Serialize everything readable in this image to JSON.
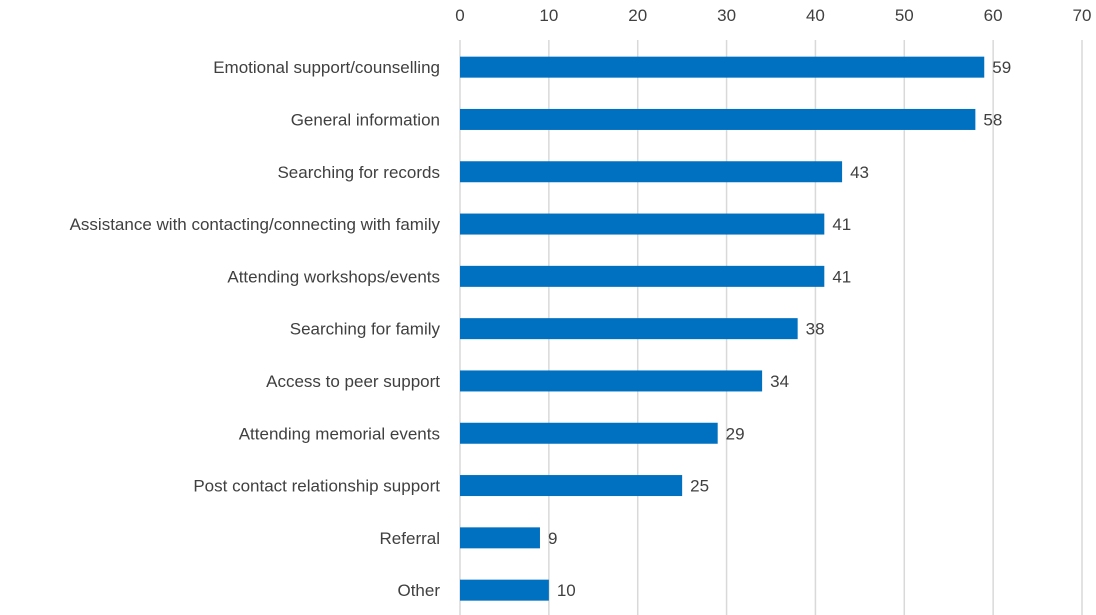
{
  "chart_data": {
    "type": "bar",
    "orientation": "horizontal",
    "categories": [
      "Emotional support/counselling",
      "General information",
      "Searching for records",
      "Assistance with contacting/connecting with family",
      "Attending workshops/events",
      "Searching for family",
      "Access to peer support",
      "Attending memorial events",
      "Post contact relationship support",
      "Referral",
      "Other"
    ],
    "values": [
      59,
      58,
      43,
      41,
      41,
      38,
      34,
      29,
      25,
      9,
      10
    ],
    "x_ticks": [
      0,
      10,
      20,
      30,
      40,
      50,
      60,
      70
    ],
    "xlim": [
      0,
      70
    ],
    "axis_position": "top",
    "grid": true,
    "data_labels": true,
    "title": "",
    "xlabel": "",
    "ylabel": "",
    "bar_color": "#0070c0",
    "grid_color": "#d9d9d9",
    "text_color": "#404040"
  }
}
